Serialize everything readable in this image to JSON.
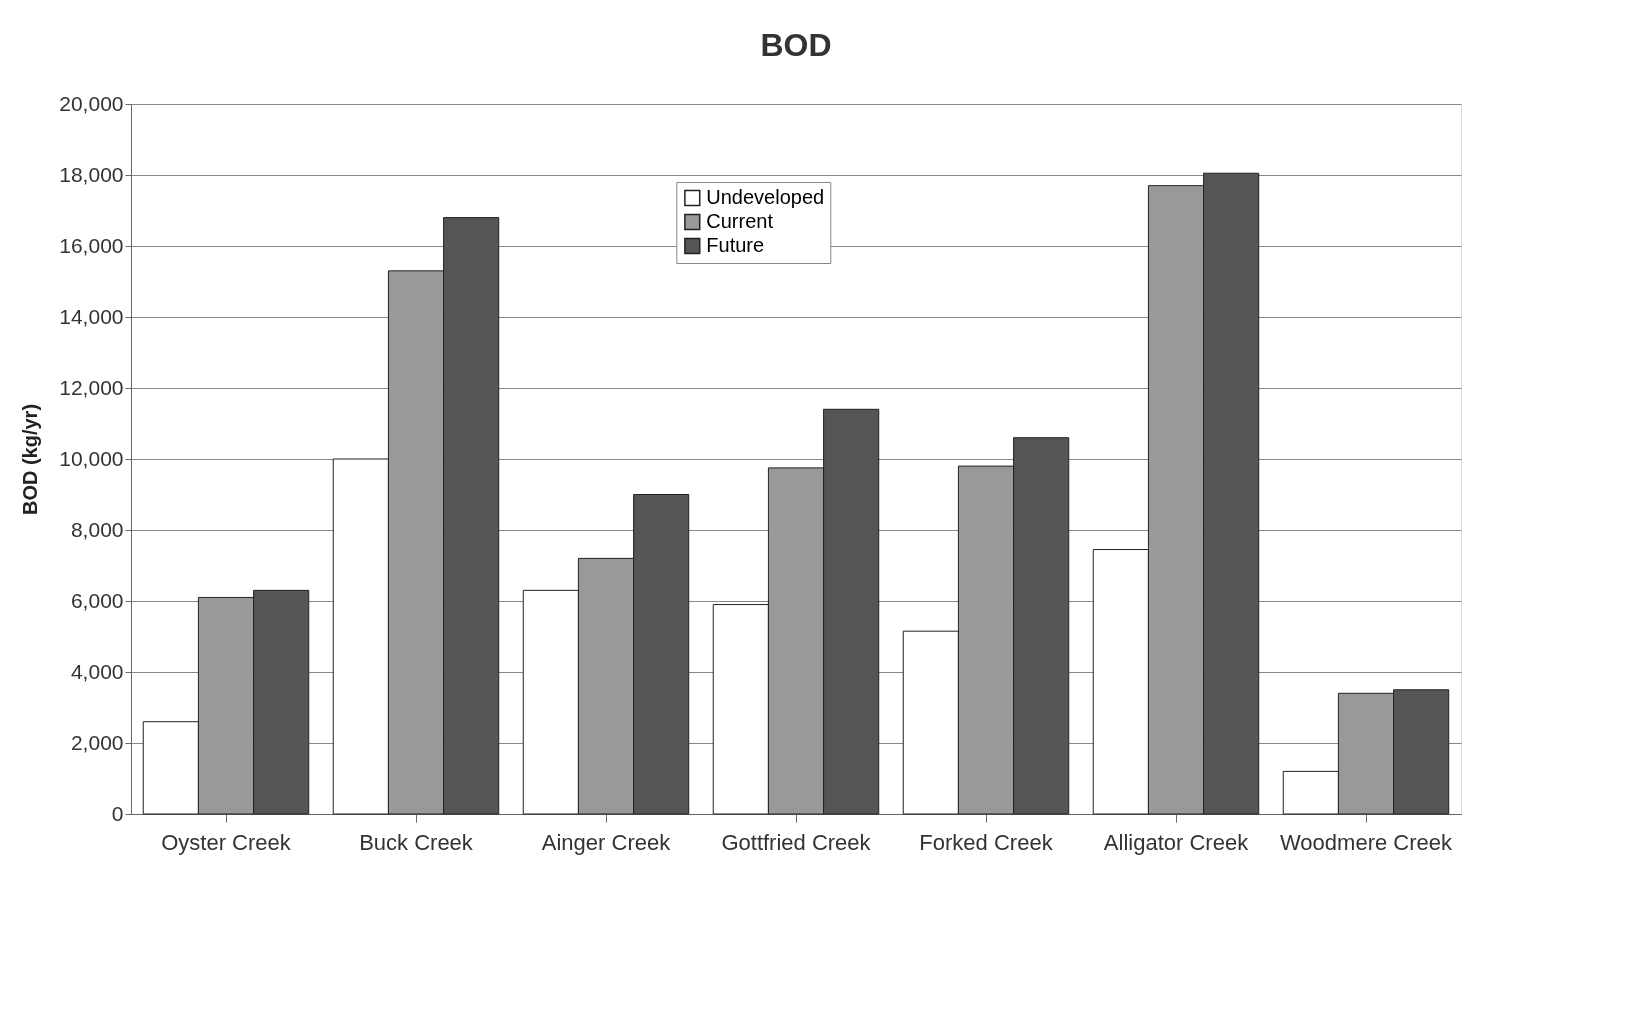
{
  "chart_data": {
    "type": "bar",
    "title": "BOD",
    "ylabel": "BOD (kg/yr)",
    "categories": [
      "Oyster Creek",
      "Buck Creek",
      "Ainger Creek",
      "Gottfried Creek",
      "Forked Creek",
      "Alligator Creek",
      "Woodmere Creek"
    ],
    "series": [
      {
        "name": "Undeveloped",
        "color": "#ffffff",
        "values": [
          2600,
          10000,
          6300,
          5900,
          5150,
          7450,
          1200
        ]
      },
      {
        "name": "Current",
        "color": "#999999",
        "values": [
          6100,
          15300,
          7200,
          9750,
          9800,
          17700,
          3400
        ]
      },
      {
        "name": "Future",
        "color": "#555555",
        "values": [
          6300,
          16800,
          9000,
          11400,
          10600,
          18050,
          3500
        ]
      }
    ],
    "ylim": [
      0,
      20000
    ],
    "yticks": [
      0,
      {
        "value": 2000,
        "label": "2,000"
      },
      {
        "value": 4000,
        "label": "4,000"
      },
      {
        "value": 6000,
        "label": "6,000"
      },
      {
        "value": 8000,
        "label": "8,000"
      },
      {
        "value": 10000,
        "label": "10,000"
      },
      {
        "value": 12000,
        "label": "12,000"
      },
      {
        "value": 14000,
        "label": "14,000"
      },
      {
        "value": 16000,
        "label": "16,000"
      },
      {
        "value": 18000,
        "label": "18,000"
      },
      {
        "value": 20000,
        "label": "20,000"
      }
    ],
    "grid": "y",
    "legend": "top"
  }
}
